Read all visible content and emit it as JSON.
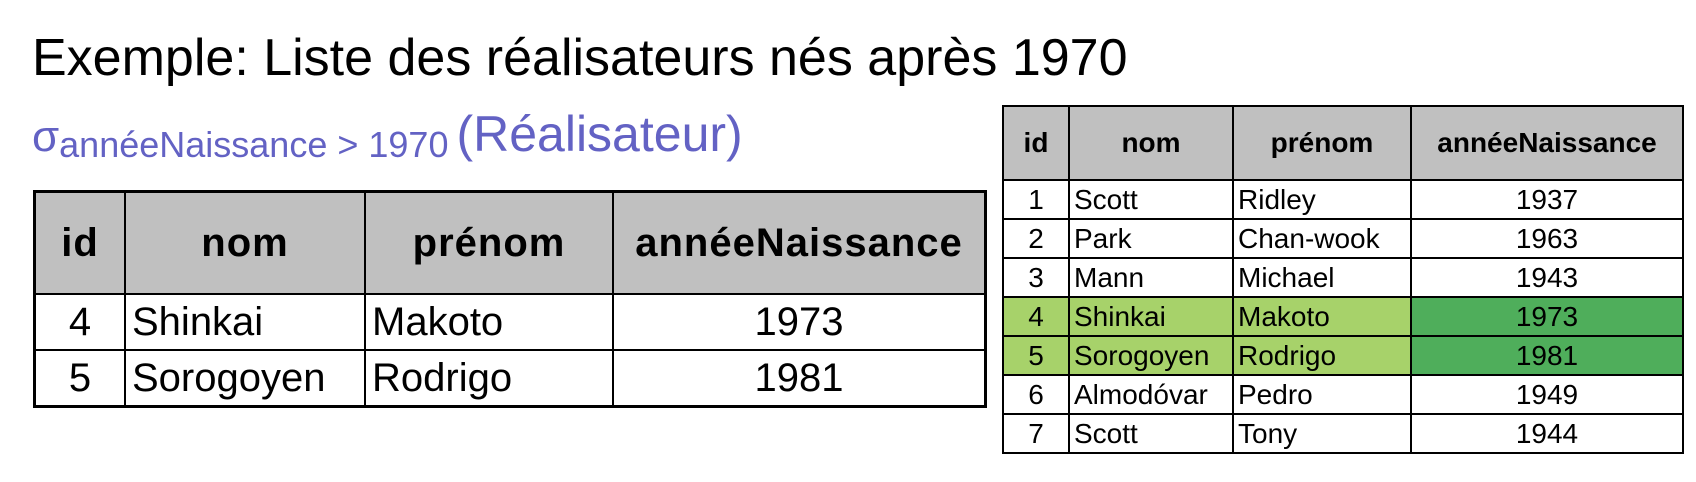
{
  "title": "Exemple: Liste des réalisateurs nés après 1970",
  "formula": {
    "sigma": "σ",
    "condition": "annéeNaissance > 1970",
    "relation": "(Réalisateur)",
    "color": "#6362c4"
  },
  "result_table": {
    "headers": [
      "id",
      "nom",
      "prénom",
      "annéeNaissance"
    ],
    "rows": [
      [
        "4",
        "Shinkai",
        "Makoto",
        "1973"
      ],
      [
        "5",
        "Sorogoyen",
        "Rodrigo",
        "1981"
      ]
    ]
  },
  "source_table": {
    "headers": [
      "id",
      "nom",
      "prénom",
      "annéeNaissance"
    ],
    "rows": [
      [
        "1",
        "Scott",
        "Ridley",
        "1937"
      ],
      [
        "2",
        "Park",
        "Chan-wook",
        "1963"
      ],
      [
        "3",
        "Mann",
        "Michael",
        "1943"
      ],
      [
        "4",
        "Shinkai",
        "Makoto",
        "1973"
      ],
      [
        "5",
        "Sorogoyen",
        "Rodrigo",
        "1981"
      ],
      [
        "6",
        "Almodóvar",
        "Pedro",
        "1949"
      ],
      [
        "7",
        "Scott",
        "Tony",
        "1944"
      ]
    ],
    "highlight_colors": {
      "light": "#a7d26a",
      "dark": "#4fae5b"
    },
    "header_color": "#c0c0c0"
  }
}
